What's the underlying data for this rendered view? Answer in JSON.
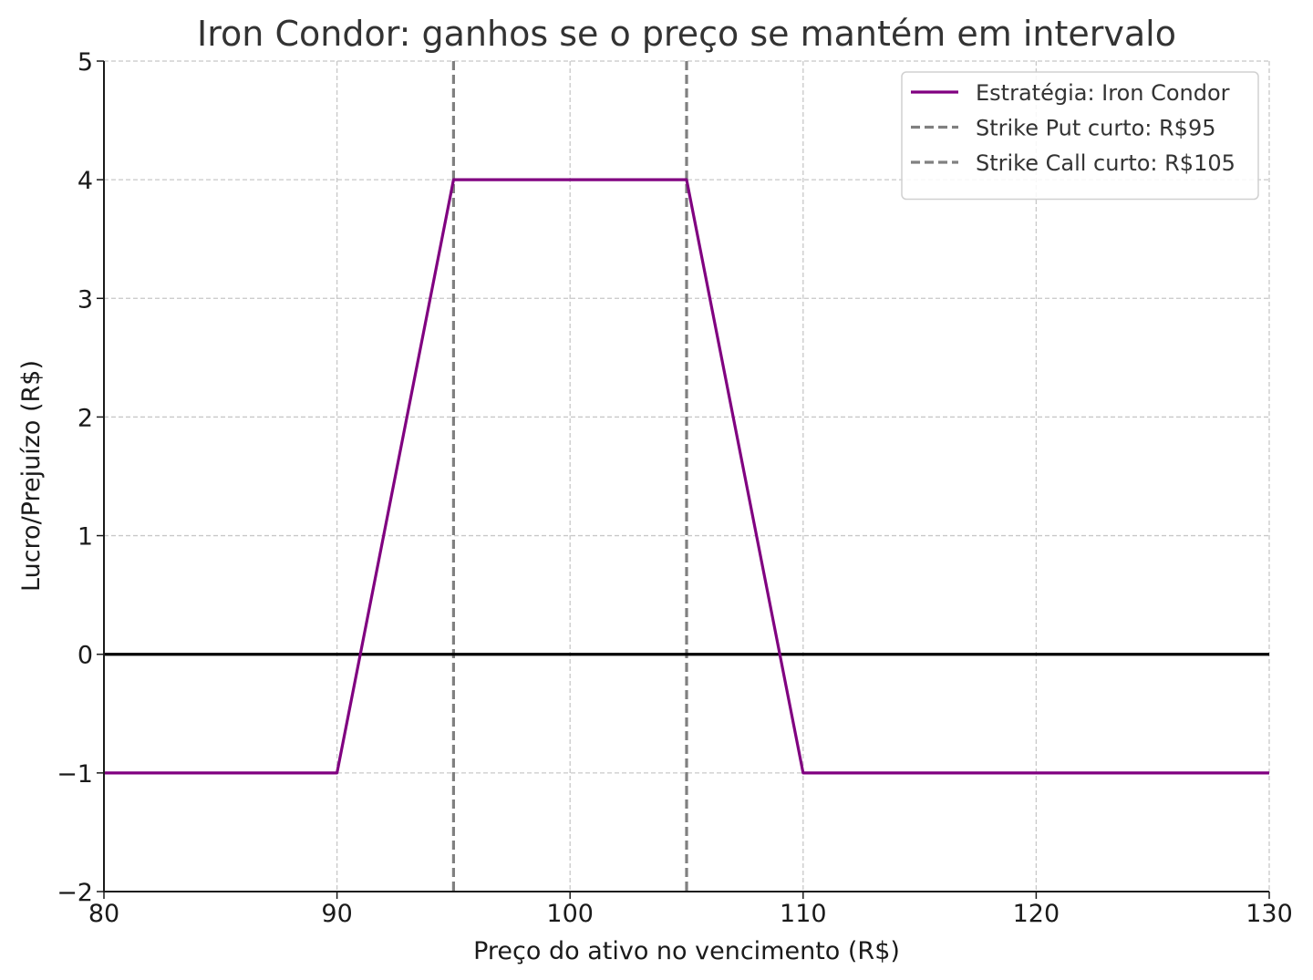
{
  "chart_data": {
    "type": "line",
    "title": "Iron Condor: ganhos se o preço se mantém em intervalo",
    "xlabel": "Preço do ativo no vencimento (R$)",
    "ylabel": "Lucro/Prejuízo (R$)",
    "xlim": [
      80,
      130
    ],
    "ylim": [
      -2,
      5
    ],
    "xticks": [
      "80",
      "90",
      "100",
      "110",
      "120",
      "130"
    ],
    "yticks": [
      "−2",
      "−1",
      "0",
      "1",
      "2",
      "3",
      "4",
      "5"
    ],
    "grid": true,
    "legend_position": "top-right",
    "series": [
      {
        "name": "Estratégia: Iron Condor",
        "color": "#800080",
        "style": "solid",
        "x": [
          80,
          90,
          95,
          105,
          110,
          130
        ],
        "y": [
          -1,
          -1,
          4,
          4,
          -1,
          -1
        ]
      }
    ],
    "reference_lines": [
      {
        "name": "Strike Put curto: R$95",
        "orientation": "vertical",
        "x": 95,
        "color": "#808080",
        "style": "dashed"
      },
      {
        "name": "Strike Call curto: R$105",
        "orientation": "vertical",
        "x": 105,
        "color": "#808080",
        "style": "dashed"
      },
      {
        "orientation": "horizontal",
        "y": 0,
        "color": "#000000",
        "style": "solid"
      }
    ]
  }
}
